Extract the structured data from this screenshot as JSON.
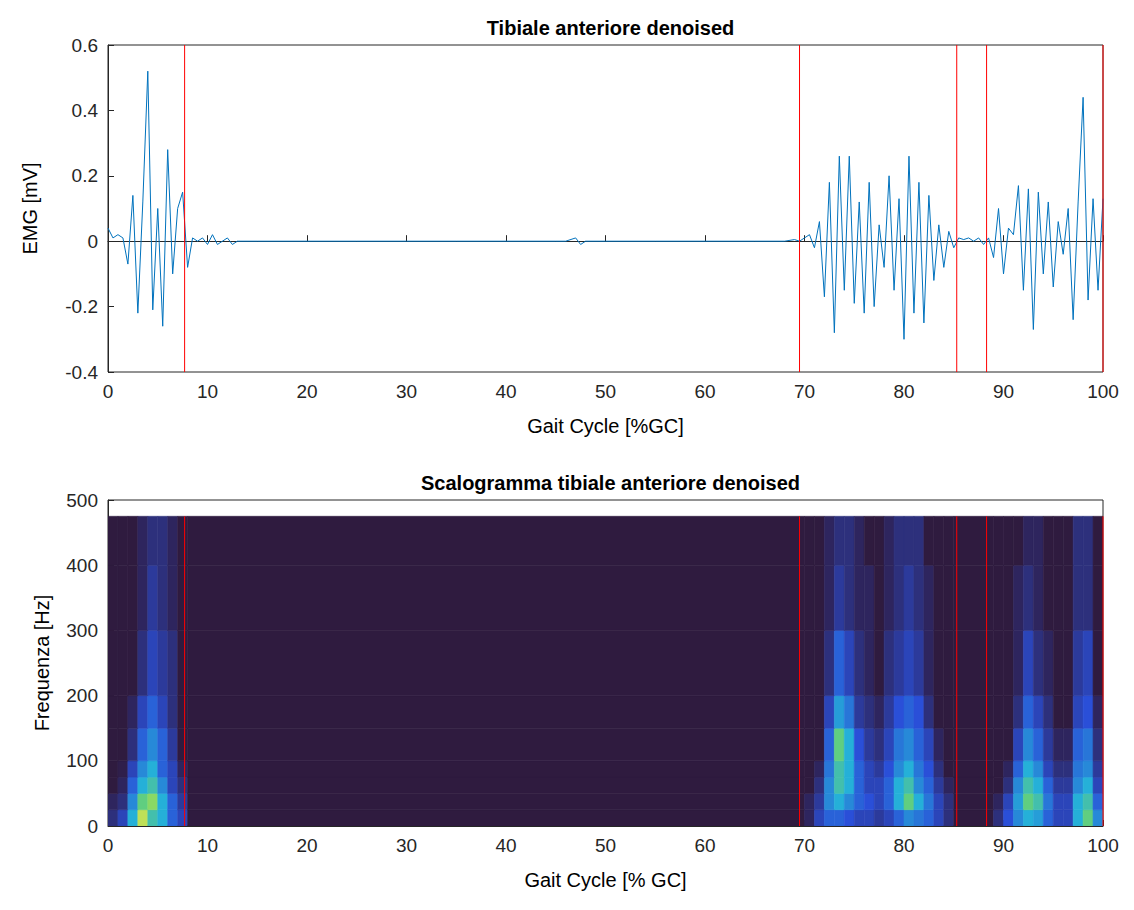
{
  "chart_data": [
    {
      "type": "line",
      "title": "Tibiale anteriore denoised",
      "xlabel": "Gait Cycle [%GC]",
      "ylabel": "EMG [mV]",
      "xlim": [
        0,
        100
      ],
      "xticks": [
        0,
        10,
        20,
        30,
        40,
        50,
        60,
        70,
        80,
        90,
        100
      ],
      "ylim": [
        -0.4,
        0.6
      ],
      "yticks": [
        -0.4,
        -0.2,
        0,
        0.2,
        0.4,
        0.6
      ],
      "grid": false,
      "series": [
        {
          "color": "#0072bd",
          "x": [
            0,
            0.5,
            1,
            1.5,
            2,
            2.5,
            3,
            3.5,
            4,
            4.5,
            5,
            5.5,
            6,
            6.5,
            7,
            7.5,
            8,
            8.5,
            9,
            9.5,
            10,
            10.5,
            11,
            11.5,
            12,
            12.5,
            13,
            15,
            20,
            25,
            30,
            35,
            40,
            45,
            46,
            47,
            47.5,
            48,
            50,
            55,
            60,
            65,
            68,
            69,
            69.5,
            70,
            70.5,
            71,
            71.5,
            72,
            72.5,
            73,
            73.5,
            74,
            74.5,
            75,
            75.5,
            76,
            76.5,
            77,
            77.5,
            78,
            78.5,
            79,
            79.5,
            80,
            80.5,
            81,
            81.5,
            82,
            82.5,
            83,
            83.5,
            84,
            84.5,
            85,
            85.5,
            86,
            86.5,
            87,
            87.5,
            88,
            88.5,
            89,
            89.5,
            90,
            90.5,
            91,
            91.5,
            92,
            92.5,
            93,
            93.5,
            94,
            94.5,
            95,
            95.5,
            96,
            96.5,
            97,
            97.5,
            98,
            98.5,
            99,
            99.5,
            100
          ],
          "values": [
            0.04,
            0.01,
            0.02,
            0.01,
            -0.07,
            0.14,
            -0.22,
            0.12,
            0.52,
            -0.21,
            0.1,
            -0.26,
            0.28,
            -0.1,
            0.1,
            0.15,
            -0.08,
            0.01,
            0,
            0.01,
            -0.01,
            0.02,
            -0.01,
            0,
            0.01,
            -0.01,
            0,
            0,
            0,
            0,
            0,
            0,
            0,
            0,
            0,
            0.01,
            -0.01,
            0,
            0,
            0,
            0,
            0,
            0,
            0.005,
            0,
            0.01,
            0.02,
            -0.02,
            0.06,
            -0.17,
            0.18,
            -0.28,
            0.26,
            -0.15,
            0.26,
            -0.19,
            0.12,
            -0.22,
            0.18,
            -0.2,
            0.05,
            -0.08,
            0.2,
            -0.15,
            0.13,
            -0.3,
            0.26,
            -0.22,
            0.18,
            -0.25,
            0.14,
            -0.12,
            0.05,
            -0.08,
            0.03,
            -0.02,
            0.01,
            0.005,
            0.01,
            0,
            0.01,
            -0.01,
            0.01,
            -0.05,
            0.1,
            -0.1,
            0.04,
            0.02,
            0.17,
            -0.15,
            0.16,
            -0.27,
            0.15,
            -0.1,
            0.12,
            -0.14,
            0.06,
            -0.04,
            0.1,
            -0.24,
            0.12,
            0.44,
            -0.18,
            0.13,
            -0.15,
            0.13
          ]
        }
      ],
      "vlines": {
        "color": "#ff0000",
        "x": [
          7.7,
          69.5,
          85.3,
          88.3,
          100
        ]
      }
    },
    {
      "type": "heatmap",
      "title": "Scalogramma tibiale anteriore denoised",
      "xlabel": "Gait Cycle [% GC]",
      "ylabel": "Frequenza [Hz]",
      "xlim": [
        0,
        100
      ],
      "xticks": [
        0,
        10,
        20,
        30,
        40,
        50,
        60,
        70,
        80,
        90,
        100
      ],
      "ylim": [
        0,
        500
      ],
      "yticks": [
        0,
        100,
        200,
        300,
        400,
        500
      ],
      "grid": false,
      "x_edges": [
        0,
        1,
        2,
        3,
        4,
        5,
        6,
        7,
        8,
        70,
        71,
        72,
        73,
        74,
        75,
        76,
        77,
        78,
        79,
        80,
        81,
        82,
        83,
        84,
        85,
        89,
        90,
        91,
        92,
        93,
        94,
        95,
        96,
        97,
        98,
        99,
        100
      ],
      "y_edges": [
        0,
        25,
        50,
        75,
        100,
        150,
        200,
        300,
        400,
        475
      ],
      "value_range": [
        0,
        1
      ],
      "values": [
        [
          0.1,
          0.2,
          0.5,
          0.9,
          0.6,
          0.5,
          0.3,
          0.2,
          0,
          0.05,
          0.2,
          0.3,
          0.3,
          0.25,
          0.2,
          0.2,
          0.15,
          0.2,
          0.3,
          0.4,
          0.35,
          0.3,
          0.2,
          0.1,
          0,
          0.1,
          0.25,
          0.4,
          0.5,
          0.45,
          0.3,
          0.2,
          0.2,
          0.5,
          0.7,
          0.4
        ],
        [
          0.05,
          0.1,
          0.4,
          0.7,
          0.8,
          0.5,
          0.3,
          0.15,
          0,
          0.05,
          0.15,
          0.4,
          0.5,
          0.4,
          0.3,
          0.25,
          0.2,
          0.3,
          0.5,
          0.7,
          0.5,
          0.35,
          0.2,
          0.1,
          0,
          0.05,
          0.2,
          0.45,
          0.7,
          0.6,
          0.35,
          0.2,
          0.2,
          0.5,
          0.6,
          0.3
        ],
        [
          0,
          0.05,
          0.3,
          0.5,
          0.6,
          0.4,
          0.2,
          0.1,
          0,
          0,
          0.1,
          0.4,
          0.6,
          0.5,
          0.3,
          0.2,
          0.2,
          0.3,
          0.5,
          0.6,
          0.4,
          0.3,
          0.15,
          0.05,
          0,
          0,
          0.1,
          0.4,
          0.6,
          0.5,
          0.3,
          0.15,
          0.15,
          0.4,
          0.5,
          0.2
        ],
        [
          0,
          0.02,
          0.2,
          0.4,
          0.5,
          0.3,
          0.2,
          0.05,
          0,
          0,
          0.05,
          0.35,
          0.6,
          0.5,
          0.3,
          0.2,
          0.15,
          0.25,
          0.4,
          0.5,
          0.35,
          0.25,
          0.1,
          0,
          0,
          0,
          0.05,
          0.3,
          0.5,
          0.4,
          0.2,
          0.1,
          0.1,
          0.35,
          0.4,
          0.15
        ],
        [
          0,
          0,
          0.1,
          0.3,
          0.4,
          0.3,
          0.15,
          0,
          0,
          0,
          0,
          0.3,
          0.7,
          0.5,
          0.25,
          0.15,
          0.1,
          0.2,
          0.35,
          0.4,
          0.3,
          0.2,
          0.05,
          0,
          0,
          0,
          0,
          0.2,
          0.4,
          0.3,
          0.15,
          0.05,
          0.05,
          0.3,
          0.35,
          0.1
        ],
        [
          0,
          0,
          0.05,
          0.2,
          0.3,
          0.2,
          0.1,
          0,
          0,
          0,
          0,
          0.2,
          0.45,
          0.35,
          0.15,
          0.1,
          0.05,
          0.15,
          0.25,
          0.3,
          0.25,
          0.1,
          0,
          0,
          0,
          0,
          0,
          0.1,
          0.3,
          0.2,
          0.1,
          0,
          0,
          0.2,
          0.25,
          0.05
        ],
        [
          0,
          0,
          0,
          0.1,
          0.2,
          0.15,
          0.1,
          0,
          0,
          0,
          0,
          0.1,
          0.3,
          0.2,
          0.1,
          0.05,
          0,
          0.1,
          0.15,
          0.2,
          0.15,
          0.05,
          0,
          0,
          0,
          0,
          0,
          0.05,
          0.2,
          0.1,
          0.05,
          0,
          0,
          0.15,
          0.2,
          0
        ],
        [
          0,
          0,
          0,
          0.05,
          0.15,
          0.1,
          0.05,
          0,
          0,
          0,
          0,
          0.05,
          0.15,
          0.1,
          0.05,
          0.05,
          0,
          0.05,
          0.1,
          0.15,
          0.1,
          0.05,
          0,
          0,
          0,
          0,
          0,
          0.05,
          0.1,
          0.05,
          0,
          0,
          0,
          0.1,
          0.1,
          0
        ],
        [
          0,
          0,
          0,
          0.05,
          0.1,
          0.1,
          0.05,
          0,
          0,
          0,
          0,
          0.05,
          0.1,
          0.1,
          0.05,
          0,
          0,
          0.05,
          0.1,
          0.1,
          0.1,
          0,
          0,
          0,
          0,
          0,
          0,
          0,
          0.05,
          0.05,
          0,
          0,
          0,
          0.1,
          0.1,
          0
        ]
      ],
      "vlines": {
        "color": "#ff0000",
        "x": [
          7.7,
          69.5,
          85.3,
          88.3,
          100
        ]
      }
    }
  ]
}
